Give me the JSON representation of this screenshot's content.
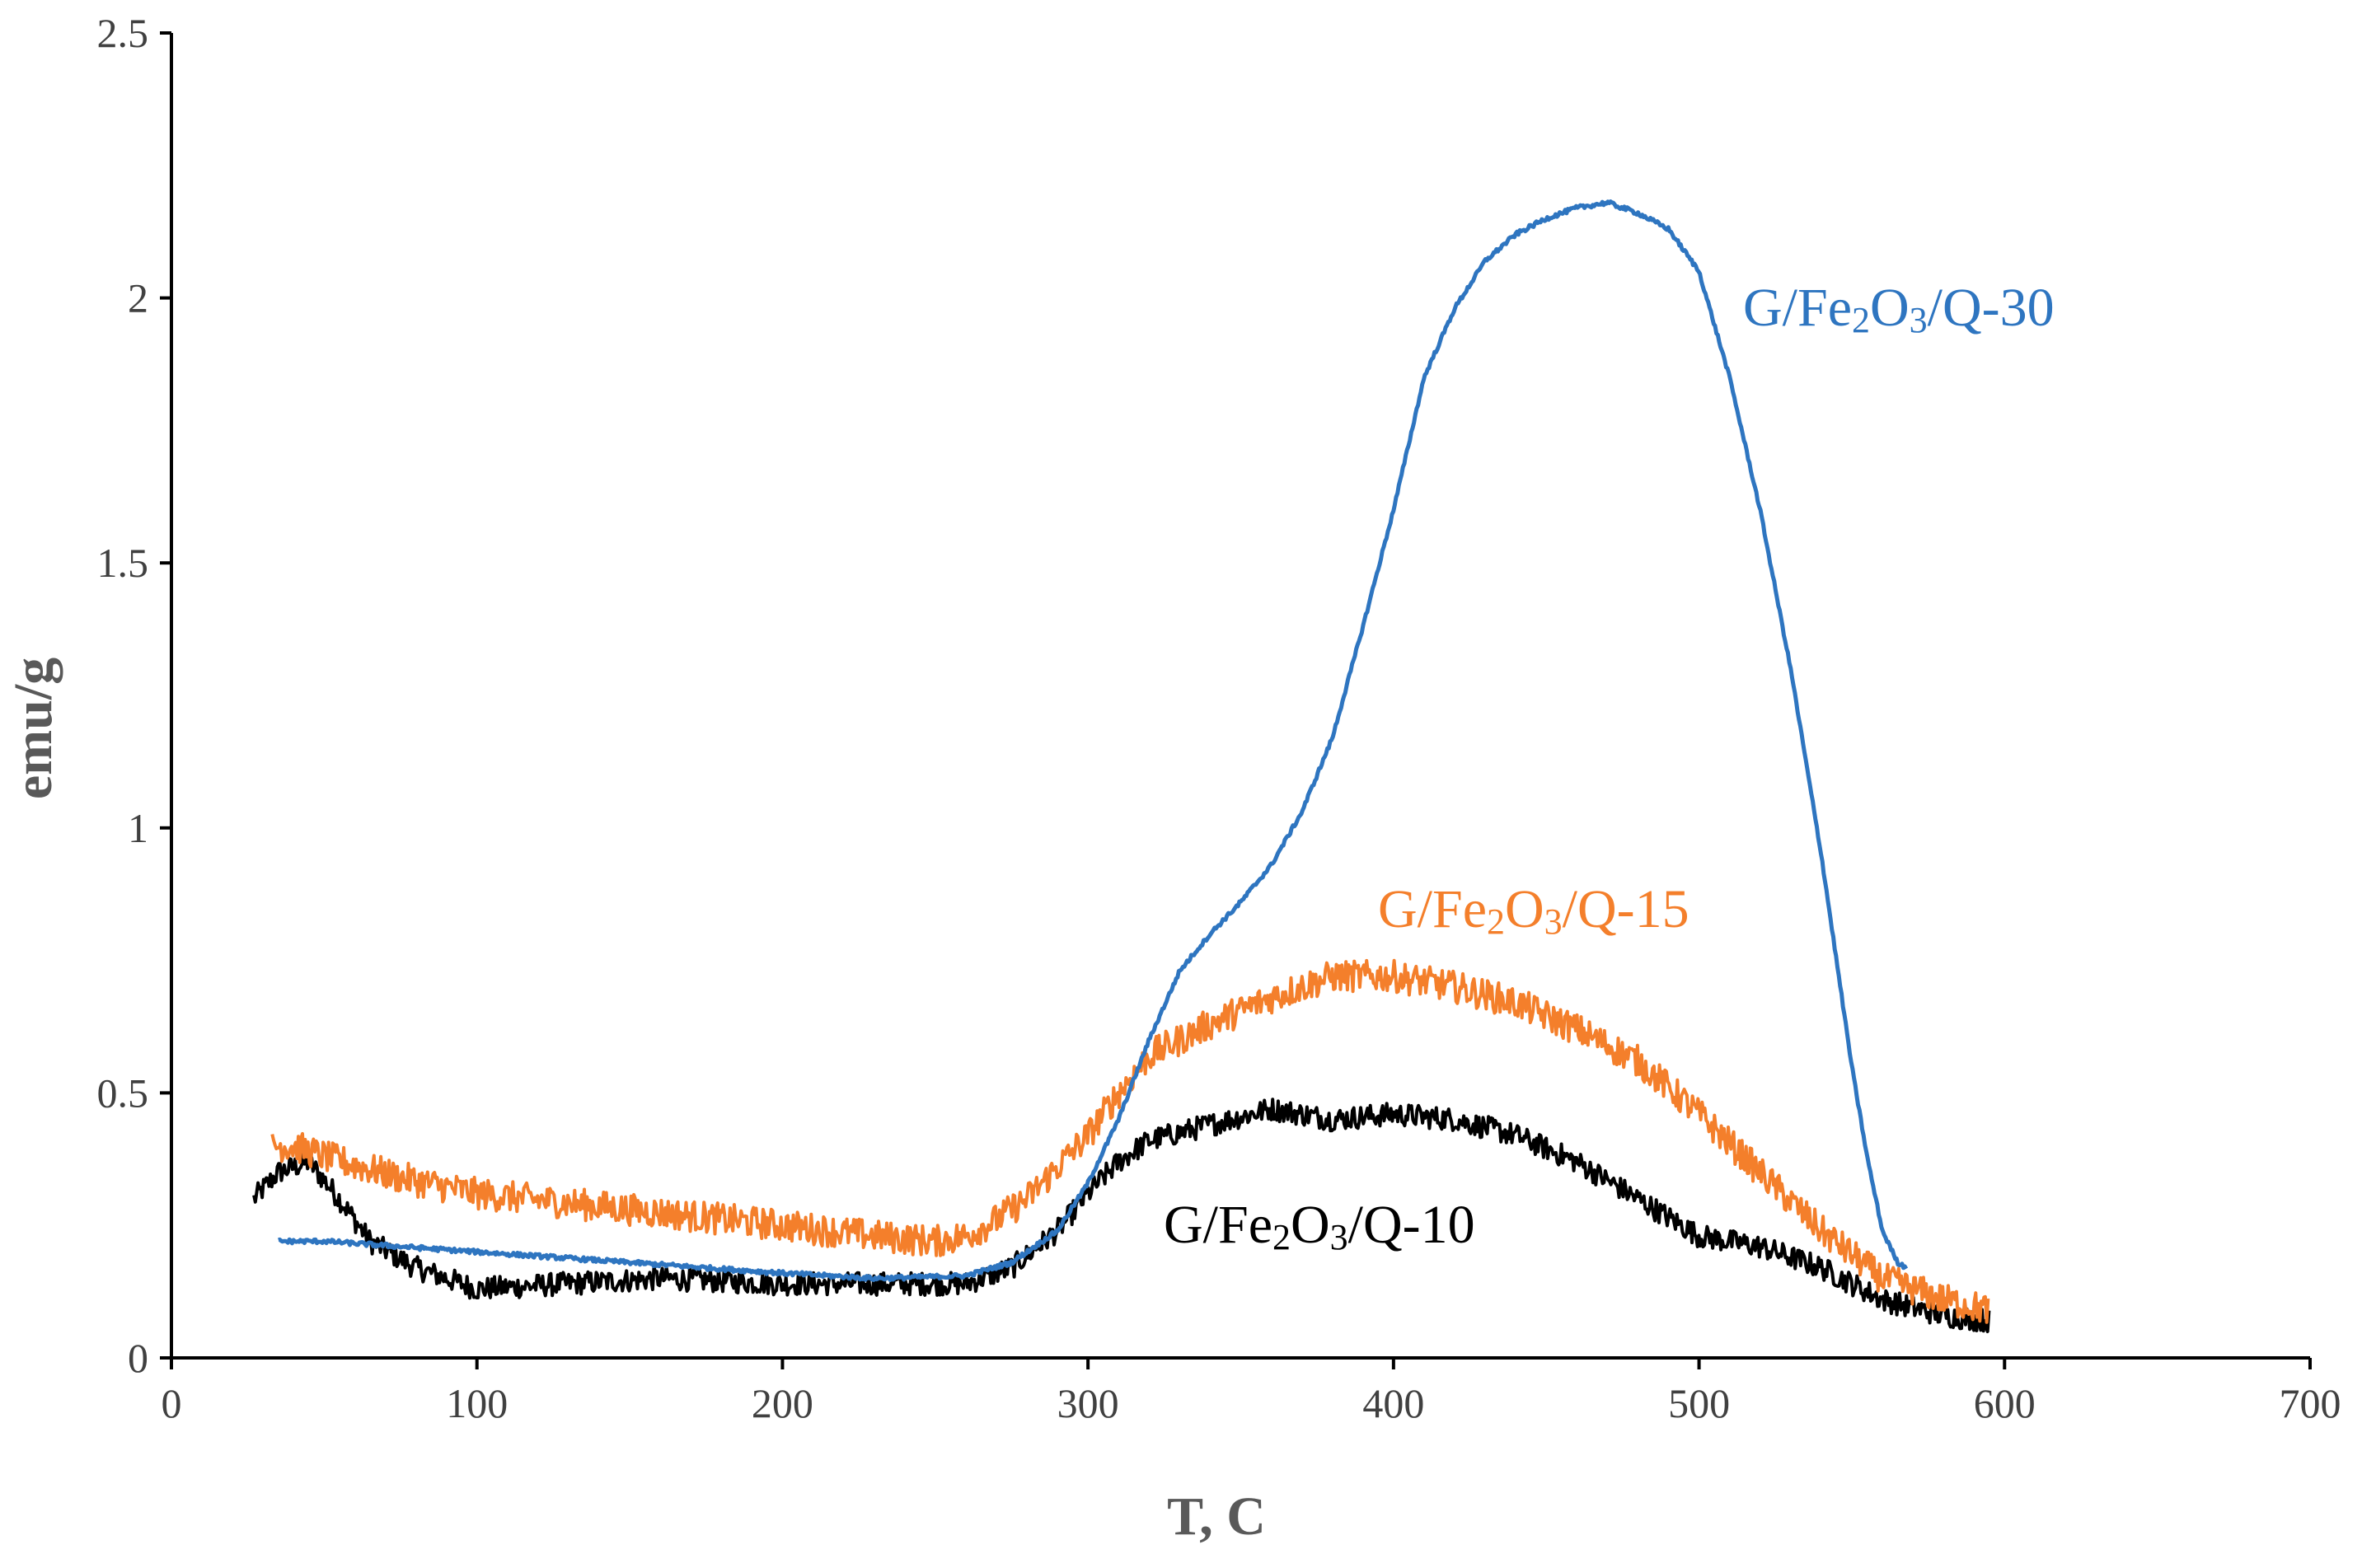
{
  "chart_data": {
    "type": "line",
    "title": "",
    "xlabel": "T, C",
    "ylabel": "emu/g",
    "xlim": [
      0,
      700
    ],
    "ylim": [
      0,
      2.5
    ],
    "xticks": [
      "0",
      "100",
      "200",
      "300",
      "400",
      "500",
      "600",
      "700"
    ],
    "yticks": [
      "0",
      "0.5",
      "1",
      "1.5",
      "2",
      "2.5"
    ],
    "grid": false,
    "legend": "none (inline series labels)",
    "series": [
      {
        "name": "G/Fe2O3/Q-30",
        "label": {
          "base": "G/Fe",
          "sub1": "2",
          "mid": "O",
          "sub2": "3",
          "tail": "/Q-30"
        },
        "color": "#2E75C0",
        "noise": 0.004,
        "x": [
          35,
          50,
          75,
          100,
          150,
          200,
          230,
          260,
          275,
          290,
          300,
          310,
          320,
          330,
          340,
          350,
          360,
          370,
          380,
          390,
          400,
          410,
          420,
          430,
          440,
          450,
          460,
          470,
          480,
          490,
          500,
          510,
          520,
          530,
          540,
          550,
          555,
          560,
          565,
          568
        ],
        "y": [
          0.22,
          0.22,
          0.21,
          0.2,
          0.18,
          0.16,
          0.15,
          0.155,
          0.18,
          0.24,
          0.33,
          0.45,
          0.6,
          0.73,
          0.8,
          0.86,
          0.93,
          1.03,
          1.17,
          1.38,
          1.6,
          1.85,
          1.98,
          2.07,
          2.12,
          2.15,
          2.17,
          2.18,
          2.16,
          2.13,
          2.05,
          1.85,
          1.6,
          1.3,
          0.95,
          0.55,
          0.38,
          0.24,
          0.18,
          0.17
        ]
      },
      {
        "name": "G/Fe2O3/Q-15",
        "label": {
          "base": "G/Fe",
          "sub1": "2",
          "mid": "O",
          "sub2": "3",
          "tail": "/Q-15"
        },
        "color": "#F47F2B",
        "noise": 0.03,
        "x": [
          33,
          40,
          50,
          75,
          100,
          150,
          200,
          230,
          250,
          260,
          270,
          280,
          290,
          300,
          310,
          320,
          340,
          360,
          380,
          400,
          420,
          440,
          460,
          480,
          500,
          520,
          540,
          560,
          580,
          595
        ],
        "y": [
          0.4,
          0.4,
          0.38,
          0.34,
          0.31,
          0.28,
          0.25,
          0.23,
          0.22,
          0.23,
          0.26,
          0.3,
          0.36,
          0.42,
          0.5,
          0.57,
          0.63,
          0.68,
          0.72,
          0.72,
          0.7,
          0.67,
          0.62,
          0.56,
          0.46,
          0.35,
          0.24,
          0.15,
          0.11,
          0.09
        ]
      },
      {
        "name": "G/Fe2O3/Q-10",
        "label": {
          "base": "G/Fe",
          "sub1": "2",
          "mid": "O",
          "sub2": "3",
          "tail": "/Q-10"
        },
        "color": "#000000",
        "noise": 0.022,
        "x": [
          27,
          35,
          45,
          55,
          65,
          80,
          100,
          130,
          160,
          200,
          230,
          260,
          275,
          290,
          300,
          310,
          320,
          340,
          360,
          380,
          400,
          420,
          440,
          460,
          480,
          500,
          520,
          540,
          560,
          580,
          595
        ],
        "y": [
          0.3,
          0.35,
          0.37,
          0.3,
          0.22,
          0.17,
          0.13,
          0.14,
          0.15,
          0.14,
          0.14,
          0.14,
          0.17,
          0.24,
          0.31,
          0.37,
          0.41,
          0.44,
          0.47,
          0.45,
          0.46,
          0.45,
          0.42,
          0.37,
          0.3,
          0.23,
          0.21,
          0.17,
          0.11,
          0.08,
          0.07
        ]
      }
    ]
  }
}
